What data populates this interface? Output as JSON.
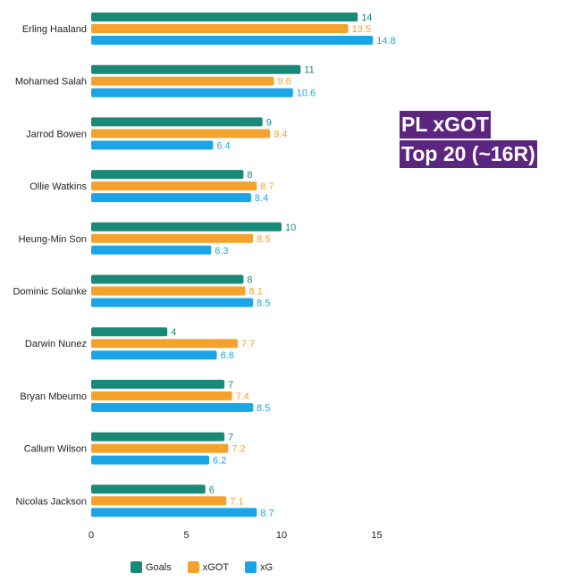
{
  "title": {
    "line1": "PL xGOT",
    "line2": "Top 20 (~16R)"
  },
  "colors": {
    "goals": "#1a8a78",
    "xgot": "#f5a22d",
    "xg": "#1aa6e6",
    "title_bg": "#5b2580"
  },
  "chart_data": {
    "type": "bar",
    "orientation": "horizontal",
    "categories": [
      "Erling Haaland",
      "Mohamed Salah",
      "Jarrod Bowen",
      "Ollie Watkins",
      "Heung-Min Son",
      "Dominic Solanke",
      "Darwin Nunez",
      "Bryan Mbeumo",
      "Callum Wilson",
      "Nicolas Jackson"
    ],
    "series": [
      {
        "name": "Goals",
        "values": [
          14,
          11,
          9,
          8,
          10,
          8,
          4,
          7,
          7,
          6
        ]
      },
      {
        "name": "xGOT",
        "values": [
          13.5,
          9.6,
          9.4,
          8.7,
          8.5,
          8.1,
          7.7,
          7.4,
          7.2,
          7.1
        ]
      },
      {
        "name": "xG",
        "values": [
          14.8,
          10.6,
          6.4,
          8.4,
          6.3,
          8.5,
          6.6,
          8.5,
          6.2,
          8.7
        ]
      }
    ],
    "value_labels": [
      [
        "14",
        "11",
        "9",
        "8",
        "10",
        "8",
        "4",
        "7",
        "7",
        "6"
      ],
      [
        "13.5",
        "9.6",
        "9.4",
        "8.7",
        "8.5",
        "8.1",
        "7.7",
        "7.4",
        "7.2",
        "7.1"
      ],
      [
        "14.8",
        "10.6",
        "6.4",
        "8.4",
        "6.3",
        "8.5",
        "6.6",
        "8.5",
        "6.2",
        "8.7"
      ]
    ],
    "xlim": [
      0,
      15
    ],
    "xticks": [
      "0",
      "5",
      "10",
      "15"
    ],
    "legend": [
      "Goals",
      "xGOT",
      "xG"
    ],
    "legend_position": "bottom"
  }
}
